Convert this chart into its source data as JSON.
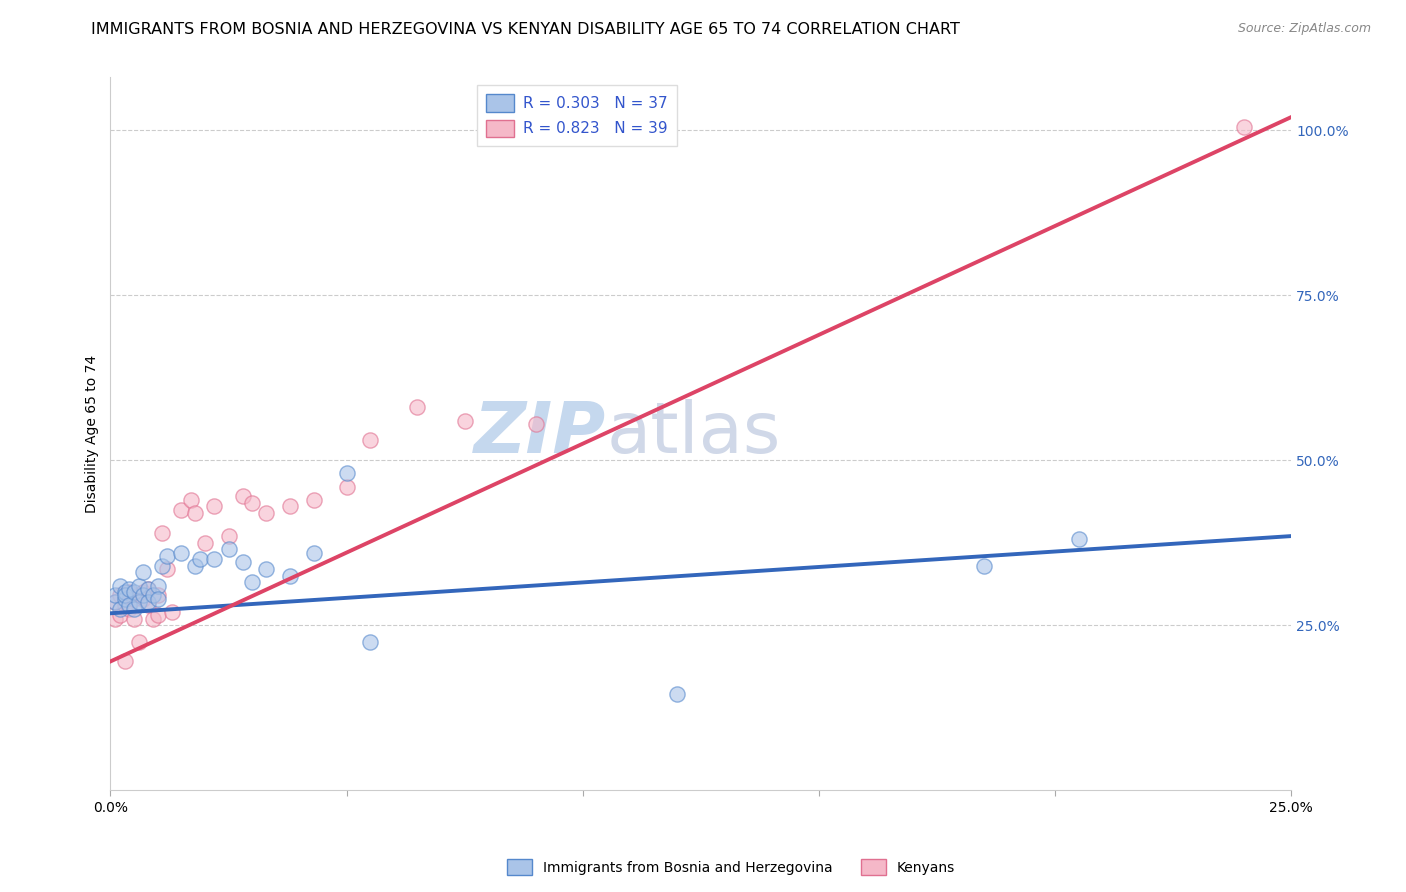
{
  "title": "IMMIGRANTS FROM BOSNIA AND HERZEGOVINA VS KENYAN DISABILITY AGE 65 TO 74 CORRELATION CHART",
  "source": "Source: ZipAtlas.com",
  "ylabel": "Disability Age 65 to 74",
  "xmin": 0.0,
  "xmax": 0.25,
  "ymin": 0.0,
  "ymax": 1.08,
  "x_ticks": [
    0.0,
    0.05,
    0.1,
    0.15,
    0.2,
    0.25
  ],
  "x_tick_labels": [
    "0.0%",
    "",
    "",
    "",
    "",
    "25.0%"
  ],
  "y_ticks_right": [
    0.25,
    0.5,
    0.75,
    1.0
  ],
  "y_tick_labels_right": [
    "25.0%",
    "50.0%",
    "75.0%",
    "100.0%"
  ],
  "legend_blue_r": "R = 0.303",
  "legend_blue_n": "N = 37",
  "legend_pink_r": "R = 0.823",
  "legend_pink_n": "N = 39",
  "legend_label_blue": "Immigrants from Bosnia and Herzegovina",
  "legend_label_pink": "Kenyans",
  "blue_scatter_x": [
    0.001,
    0.001,
    0.002,
    0.002,
    0.003,
    0.003,
    0.003,
    0.004,
    0.004,
    0.005,
    0.005,
    0.006,
    0.006,
    0.007,
    0.007,
    0.008,
    0.008,
    0.009,
    0.01,
    0.01,
    0.011,
    0.012,
    0.015,
    0.018,
    0.019,
    0.022,
    0.025,
    0.028,
    0.03,
    0.033,
    0.038,
    0.043,
    0.05,
    0.055,
    0.12,
    0.185,
    0.205
  ],
  "blue_scatter_y": [
    0.285,
    0.295,
    0.275,
    0.31,
    0.29,
    0.3,
    0.295,
    0.28,
    0.305,
    0.275,
    0.3,
    0.285,
    0.31,
    0.295,
    0.33,
    0.305,
    0.285,
    0.295,
    0.31,
    0.29,
    0.34,
    0.355,
    0.36,
    0.34,
    0.35,
    0.35,
    0.365,
    0.345,
    0.315,
    0.335,
    0.325,
    0.36,
    0.48,
    0.225,
    0.145,
    0.34,
    0.38
  ],
  "pink_scatter_x": [
    0.001,
    0.001,
    0.002,
    0.002,
    0.003,
    0.003,
    0.004,
    0.004,
    0.005,
    0.005,
    0.006,
    0.006,
    0.007,
    0.007,
    0.008,
    0.008,
    0.009,
    0.01,
    0.01,
    0.011,
    0.012,
    0.013,
    0.015,
    0.017,
    0.018,
    0.02,
    0.022,
    0.025,
    0.028,
    0.03,
    0.033,
    0.038,
    0.043,
    0.05,
    0.055,
    0.065,
    0.075,
    0.09,
    0.24
  ],
  "pink_scatter_y": [
    0.285,
    0.26,
    0.295,
    0.265,
    0.28,
    0.195,
    0.3,
    0.275,
    0.29,
    0.26,
    0.295,
    0.225,
    0.3,
    0.29,
    0.305,
    0.28,
    0.26,
    0.265,
    0.295,
    0.39,
    0.335,
    0.27,
    0.425,
    0.44,
    0.42,
    0.375,
    0.43,
    0.385,
    0.445,
    0.435,
    0.42,
    0.43,
    0.44,
    0.46,
    0.53,
    0.58,
    0.56,
    0.555,
    1.005
  ],
  "blue_line_x": [
    0.0,
    0.25
  ],
  "blue_line_y": [
    0.268,
    0.385
  ],
  "pink_line_x": [
    0.0,
    0.25
  ],
  "pink_line_y": [
    0.195,
    1.02
  ],
  "watermark_zip": "ZIP",
  "watermark_atlas": "atlas",
  "background_color": "#ffffff",
  "scatter_alpha": 0.6,
  "scatter_size": 120,
  "blue_color": "#aac4e8",
  "blue_edge_color": "#5588cc",
  "pink_color": "#f5b8c8",
  "pink_edge_color": "#e07090",
  "blue_line_color": "#3366bb",
  "pink_line_color": "#dd4466",
  "title_fontsize": 11.5,
  "axis_label_fontsize": 10,
  "tick_label_fontsize": 10,
  "watermark_color_zip": "#c5d8ee",
  "watermark_color_atlas": "#d0d8e8",
  "watermark_fontsize": 52
}
